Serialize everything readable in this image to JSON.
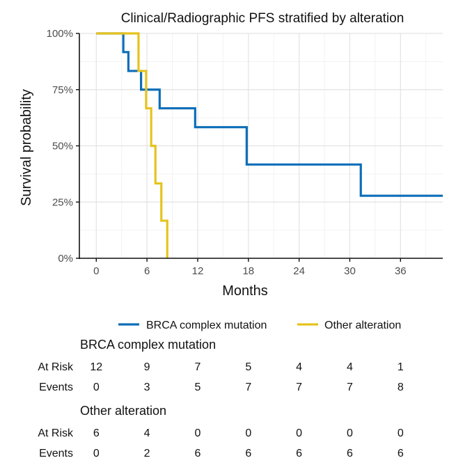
{
  "chart_data": {
    "type": "line",
    "step": true,
    "title": "Clinical/Radiographic PFS stratified by alteration",
    "xlabel": "Months",
    "ylabel": "Survival probability",
    "xlim": [
      -2,
      41
    ],
    "ylim": [
      0,
      1
    ],
    "x_ticks": [
      0,
      6,
      12,
      18,
      24,
      30,
      36
    ],
    "x_tick_labels": [
      "0",
      "6",
      "12",
      "18",
      "24",
      "30",
      "36"
    ],
    "y_ticks": [
      0,
      0.25,
      0.5,
      0.75,
      1
    ],
    "y_tick_labels": [
      "0%",
      "25%",
      "50%",
      "75%",
      "100%"
    ],
    "grid": true,
    "legend": "bottom",
    "series": [
      {
        "name": "BRCA complex mutation",
        "color": "#0c6eb8",
        "x": [
          0,
          3.2,
          3.8,
          5.3,
          7.5,
          11.7,
          17.8,
          31.3,
          41
        ],
        "y": [
          1,
          0.917,
          0.833,
          0.75,
          0.667,
          0.583,
          0.417,
          0.278,
          0.278
        ]
      },
      {
        "name": "Other alteration",
        "color": "#e6c31e",
        "x": [
          0,
          5.0,
          5.9,
          6.5,
          7.0,
          7.7,
          8.4
        ],
        "y": [
          1,
          0.833,
          0.667,
          0.5,
          0.333,
          0.167,
          0
        ]
      }
    ],
    "risk_table": {
      "time_points": [
        0,
        6,
        12,
        18,
        24,
        30,
        36
      ],
      "row_labels": [
        "At Risk",
        "Events"
      ],
      "groups": [
        {
          "title": "BRCA complex mutation",
          "at_risk": [
            "12",
            "9",
            "7",
            "5",
            "4",
            "4",
            "1"
          ],
          "events": [
            "0",
            "3",
            "5",
            "7",
            "7",
            "7",
            "8"
          ]
        },
        {
          "title": "Other alteration",
          "at_risk": [
            "6",
            "4",
            "0",
            "0",
            "0",
            "0",
            "0"
          ],
          "events": [
            "0",
            "2",
            "6",
            "6",
            "6",
            "6",
            "6"
          ]
        }
      ]
    }
  }
}
